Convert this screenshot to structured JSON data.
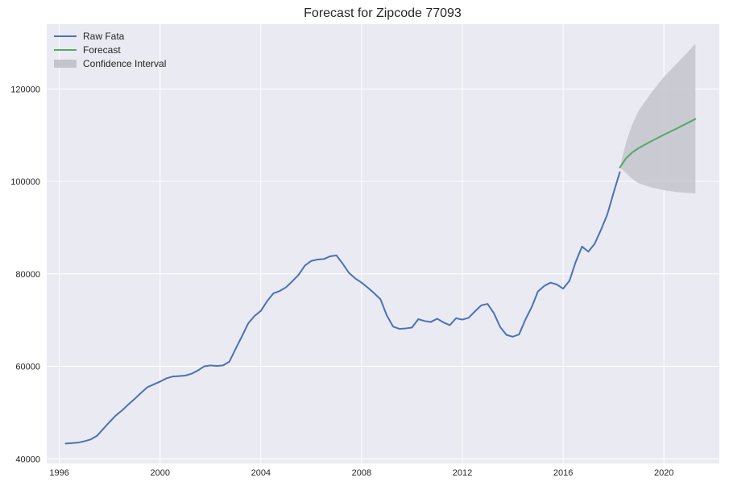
{
  "chart_data": {
    "type": "line",
    "title": "Forecast for Zipcode 77093",
    "xlabel": "",
    "ylabel": "",
    "xlim": [
      1995.5,
      2022.2
    ],
    "ylim": [
      39000,
      134000
    ],
    "x_ticks": [
      1996,
      2000,
      2004,
      2008,
      2012,
      2016,
      2020
    ],
    "x_tick_labels": [
      "1996",
      "2000",
      "2004",
      "2008",
      "2012",
      "2016",
      "2020"
    ],
    "y_ticks": [
      40000,
      60000,
      80000,
      100000,
      120000
    ],
    "y_tick_labels": [
      "40000",
      "60000",
      "80000",
      "100000",
      "120000"
    ],
    "grid": true,
    "legend_position": "top-left",
    "colors": {
      "background": "#eaeaf2",
      "grid": "#ffffff",
      "raw": "#4c72b0",
      "forecast": "#55a868",
      "ci": "#c4c4cc"
    },
    "series": [
      {
        "name": "Raw Fata",
        "x": [
          1996.25,
          1996.5,
          1996.75,
          1997.0,
          1997.25,
          1997.5,
          1997.75,
          1998.0,
          1998.25,
          1998.5,
          1998.75,
          1999.0,
          1999.25,
          1999.5,
          1999.75,
          2000.0,
          2000.25,
          2000.5,
          2000.75,
          2001.0,
          2001.25,
          2001.5,
          2001.75,
          2002.0,
          2002.25,
          2002.5,
          2002.75,
          2003.0,
          2003.25,
          2003.5,
          2003.75,
          2004.0,
          2004.25,
          2004.5,
          2004.75,
          2005.0,
          2005.25,
          2005.5,
          2005.75,
          2006.0,
          2006.25,
          2006.5,
          2006.75,
          2007.0,
          2007.25,
          2007.5,
          2007.75,
          2008.0,
          2008.25,
          2008.5,
          2008.75,
          2009.0,
          2009.25,
          2009.5,
          2009.75,
          2010.0,
          2010.25,
          2010.5,
          2010.75,
          2011.0,
          2011.25,
          2011.5,
          2011.75,
          2012.0,
          2012.25,
          2012.5,
          2012.75,
          2013.0,
          2013.25,
          2013.5,
          2013.75,
          2014.0,
          2014.25,
          2014.5,
          2014.75,
          2015.0,
          2015.25,
          2015.5,
          2015.75,
          2016.0,
          2016.25,
          2016.5,
          2016.75,
          2017.0,
          2017.25,
          2017.5,
          2017.75,
          2018.0,
          2018.25
        ],
        "values": [
          43300,
          43400,
          43500,
          43800,
          44200,
          45000,
          46500,
          48000,
          49400,
          50500,
          51800,
          53000,
          54300,
          55500,
          56100,
          56700,
          57400,
          57800,
          57900,
          58000,
          58400,
          59100,
          60000,
          60200,
          60100,
          60200,
          61000,
          63800,
          66500,
          69300,
          70900,
          72000,
          74100,
          75800,
          76300,
          77100,
          78400,
          79800,
          81800,
          82800,
          83100,
          83200,
          83800,
          84000,
          82200,
          80200,
          79000,
          78100,
          77000,
          75800,
          74500,
          71000,
          68600,
          68100,
          68200,
          68400,
          70200,
          69800,
          69600,
          70300,
          69500,
          68900,
          70400,
          70100,
          70500,
          71900,
          73200,
          73500,
          71500,
          68500,
          66800,
          66400,
          66900,
          70100,
          72800,
          76200,
          77400,
          78100,
          77700,
          76800,
          78500,
          82600,
          85900,
          84800,
          86500,
          89500,
          92800,
          97500,
          102000
        ]
      },
      {
        "name": "Forecast",
        "x": [
          2018.25,
          2018.5,
          2018.75,
          2019.0,
          2019.5,
          2020.0,
          2020.5,
          2021.0,
          2021.25
        ],
        "values": [
          103000,
          105000,
          106300,
          107200,
          108700,
          110100,
          111400,
          112800,
          113500
        ]
      }
    ],
    "confidence_interval": {
      "name": "Confidence Interval",
      "x": [
        2018.25,
        2018.5,
        2018.75,
        2019.0,
        2019.5,
        2020.0,
        2020.5,
        2021.0,
        2021.25
      ],
      "lower": [
        103000,
        101800,
        100500,
        99600,
        98700,
        98100,
        97700,
        97500,
        97400
      ],
      "upper": [
        103000,
        108500,
        112400,
        115300,
        119200,
        122600,
        125400,
        128300,
        129800
      ]
    }
  }
}
